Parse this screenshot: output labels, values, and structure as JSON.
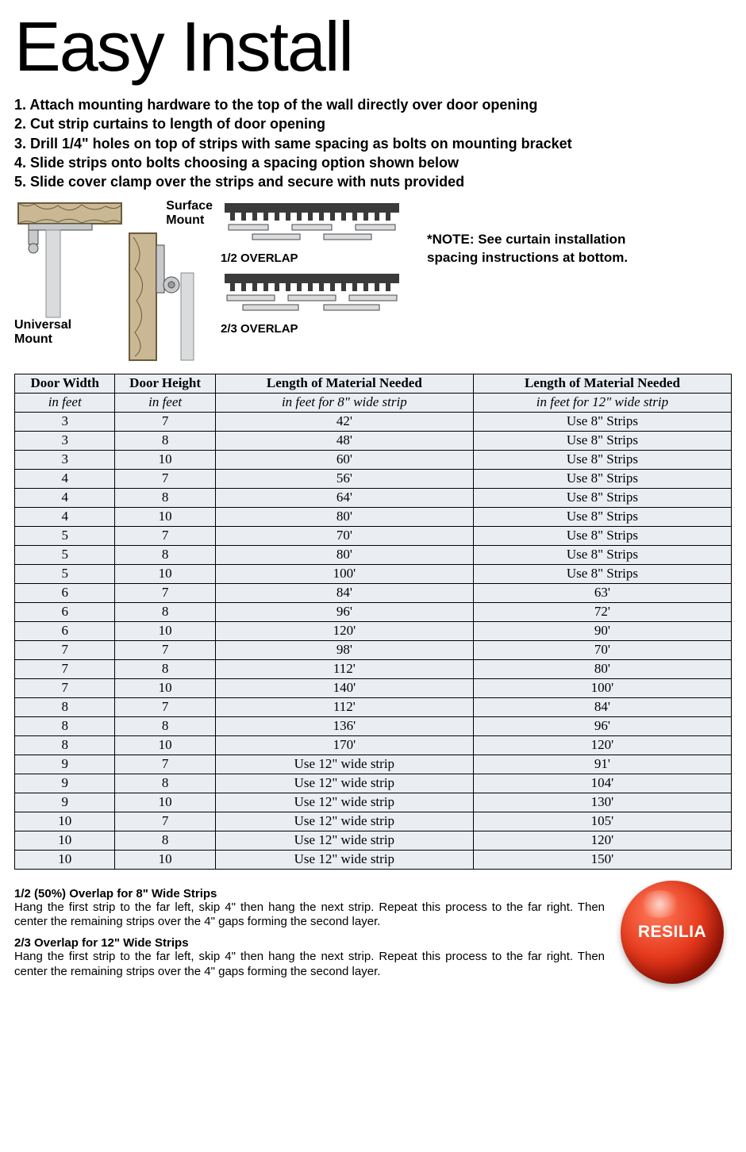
{
  "title": "Easy Install",
  "steps": [
    "1. Attach mounting hardware to the top of the wall directly over door opening",
    "2. Cut strip curtains to length of door opening",
    "3. Drill 1/4\" holes on top of strips with same spacing as bolts on mounting bracket",
    "4. Slide strips onto bolts choosing a spacing option shown below",
    "5. Slide cover clamp over the strips and secure with nuts provided"
  ],
  "diagrams": {
    "universal_mount_label": "Universal\nMount",
    "surface_mount_label": "Surface\nMount",
    "overlap_half_label": "1/2 OVERLAP",
    "overlap_twothirds_label": "2/3 OVERLAP",
    "note": "*NOTE: See curtain installation spacing instructions at bottom.",
    "wood_fill": "#c9b893",
    "wood_stroke": "#6b5a3e",
    "metal_fill": "#c7c9cb",
    "metal_stroke": "#4a4a4a",
    "bracket_fill": "#3a3a3a"
  },
  "table": {
    "columns": [
      "Door Width",
      "Door Height",
      "Length of Material Needed",
      "Length of Material Needed"
    ],
    "subheaders": [
      "in feet",
      "in feet",
      "in feet for 8\" wide strip",
      "in feet for 12\" wide strip"
    ],
    "col_widths_pct": [
      14,
      14,
      36,
      36
    ],
    "row_bg": "#eaeef3",
    "border_color": "#000000",
    "font_family": "Times New Roman, serif",
    "rows": [
      [
        "3",
        "7",
        "42'",
        "Use 8\" Strips"
      ],
      [
        "3",
        "8",
        "48'",
        "Use 8\" Strips"
      ],
      [
        "3",
        "10",
        "60'",
        "Use 8\" Strips"
      ],
      [
        "4",
        "7",
        "56'",
        "Use 8\" Strips"
      ],
      [
        "4",
        "8",
        "64'",
        "Use 8\" Strips"
      ],
      [
        "4",
        "10",
        "80'",
        "Use 8\" Strips"
      ],
      [
        "5",
        "7",
        "70'",
        "Use 8\" Strips"
      ],
      [
        "5",
        "8",
        "80'",
        "Use 8\" Strips"
      ],
      [
        "5",
        "10",
        "100'",
        "Use 8\" Strips"
      ],
      [
        "6",
        "7",
        "84'",
        "63'"
      ],
      [
        "6",
        "8",
        "96'",
        "72'"
      ],
      [
        "6",
        "10",
        "120'",
        "90'"
      ],
      [
        "7",
        "7",
        "98'",
        "70'"
      ],
      [
        "7",
        "8",
        "112'",
        "80'"
      ],
      [
        "7",
        "10",
        "140'",
        "100'"
      ],
      [
        "8",
        "7",
        "112'",
        "84'"
      ],
      [
        "8",
        "8",
        "136'",
        "96'"
      ],
      [
        "8",
        "10",
        "170'",
        "120'"
      ],
      [
        "9",
        "7",
        "Use 12\" wide strip",
        "91'"
      ],
      [
        "9",
        "8",
        "Use 12\" wide strip",
        "104'"
      ],
      [
        "9",
        "10",
        "Use 12\" wide strip",
        "130'"
      ],
      [
        "10",
        "7",
        "Use 12\" wide strip",
        "105'"
      ],
      [
        "10",
        "8",
        "Use 12\" wide strip",
        "120'"
      ],
      [
        "10",
        "10",
        "Use 12\" wide strip",
        "150'"
      ]
    ]
  },
  "instructions": {
    "half_title": "1/2 (50%) Overlap for 8\" Wide Strips",
    "half_body": "Hang the first strip to the far left, skip 4\" then hang the next strip.  Repeat this process to the far right.  Then center the remaining strips over the 4\" gaps forming the second layer.",
    "twothirds_title": "2/3 Overlap for 12\" Wide Strips",
    "twothirds_body": "Hang the first strip to the far left, skip 4\" then hang the next strip.  Repeat this process to the far right.  Then center the remaining strips over the 4\" gaps forming the second layer."
  },
  "logo": {
    "text": "RESILIA",
    "gradient_center": "#ff7a5a",
    "gradient_mid": "#e63b1e",
    "gradient_dark": "#b01505",
    "text_color": "#ffffff"
  }
}
